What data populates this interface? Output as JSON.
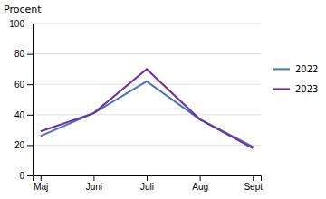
{
  "chart_data": {
    "type": "line",
    "categories": [
      "Maj",
      "Juni",
      "Juli",
      "Aug",
      "Sept"
    ],
    "series": [
      {
        "name": "2022",
        "color": "#4472C4",
        "values": [
          26,
          41,
          62,
          37,
          19
        ]
      },
      {
        "name": "2023",
        "color": "#7030A0",
        "values": [
          29,
          41,
          70,
          37,
          18
        ]
      }
    ],
    "ylabel": "Procent",
    "ylim": [
      0,
      100
    ],
    "yticks": [
      0,
      20,
      40,
      60,
      80,
      100
    ],
    "grid": true,
    "legend": "right"
  }
}
